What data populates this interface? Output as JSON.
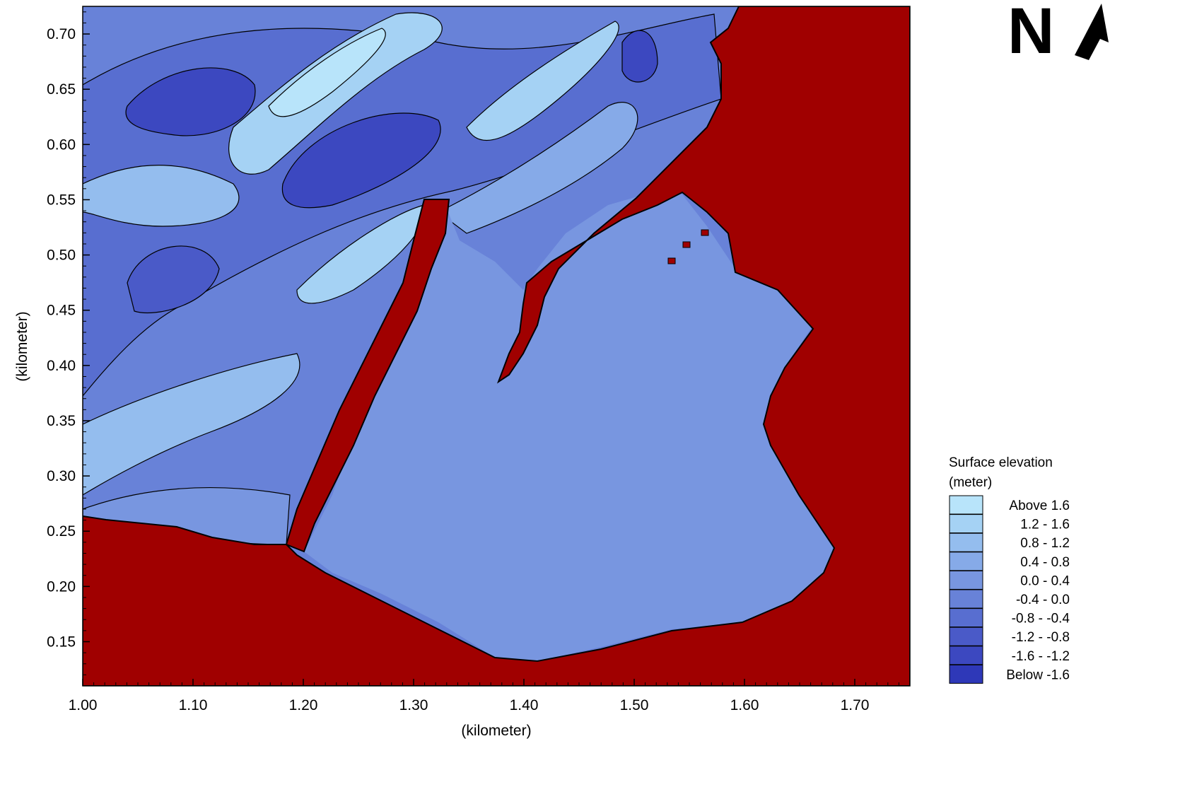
{
  "chart_data": {
    "type": "heatmap",
    "xlabel": "(kilometer)",
    "ylabel": "(kilometer)",
    "xlim": [
      1.0,
      1.75
    ],
    "ylim": [
      0.11,
      0.725
    ],
    "x_ticks": [
      "1.00",
      "1.10",
      "1.20",
      "1.30",
      "1.40",
      "1.50",
      "1.60",
      "1.70"
    ],
    "y_ticks": [
      "0.15",
      "0.20",
      "0.25",
      "0.30",
      "0.35",
      "0.40",
      "0.45",
      "0.50",
      "0.55",
      "0.60",
      "0.65",
      "0.70"
    ],
    "x_tick_values": [
      1.0,
      1.1,
      1.2,
      1.3,
      1.4,
      1.5,
      1.6,
      1.7
    ],
    "y_tick_values": [
      0.15,
      0.2,
      0.25,
      0.3,
      0.35,
      0.4,
      0.45,
      0.5,
      0.55,
      0.6,
      0.65,
      0.7
    ],
    "legend": {
      "title_line1": "Surface elevation",
      "title_line2": "(meter)",
      "position": "bottom-right",
      "entries": [
        {
          "label": "Above  1.6",
          "color": "#b8e4fa"
        },
        {
          "label": "1.2 -  1.6",
          "color": "#a5d2f4"
        },
        {
          "label": "0.8 -  1.2",
          "color": "#94bdee"
        },
        {
          "label": "0.4 -  0.8",
          "color": "#86aae8"
        },
        {
          "label": "0.0 -  0.4",
          "color": "#7896e0"
        },
        {
          "label": "-0.4 -  0.0",
          "color": "#6882d8"
        },
        {
          "label": "-0.8 - -0.4",
          "color": "#586ed0"
        },
        {
          "label": "-1.2 - -0.8",
          "color": "#4a5ac8"
        },
        {
          "label": "-1.6 - -1.2",
          "color": "#3c48c0"
        },
        {
          "label": "Below -1.6",
          "color": "#2e38b8"
        }
      ]
    },
    "land_color": "#a00000",
    "north_arrow": "N"
  }
}
